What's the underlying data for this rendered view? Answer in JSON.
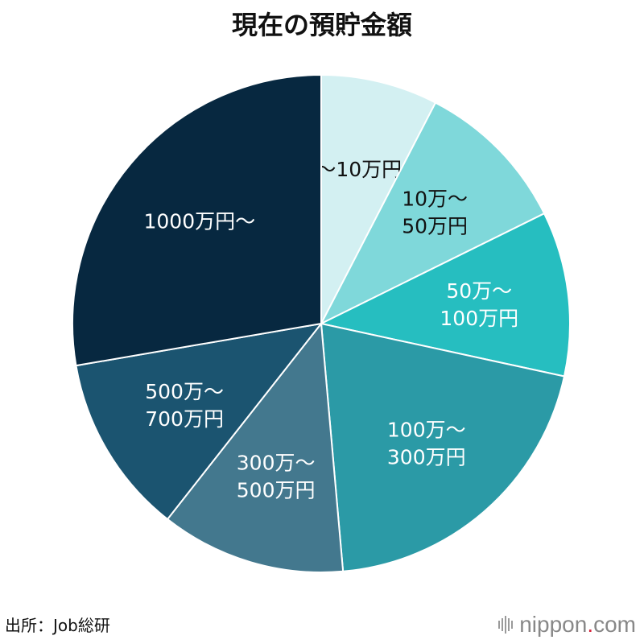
{
  "title": "現在の預貯金額",
  "source": "出所：Job総研",
  "logo": {
    "name": "nippon",
    "dot": ".",
    "tld": "com",
    "icon": "sound-wave-logo-icon"
  },
  "chart_data": {
    "type": "pie",
    "title": "現在の預貯金額",
    "slices": [
      {
        "label": "～10万円",
        "value": 7.6,
        "color": "#d3f0f2",
        "text_color": "#111111"
      },
      {
        "label": "10万～\n50万円",
        "value": 10.1,
        "color": "#7fd8da",
        "text_color": "#111111"
      },
      {
        "label": "50万～\n100万円",
        "value": 10.7,
        "color": "#26bec0",
        "text_color": "#ffffff"
      },
      {
        "label": "100万～\n300万円",
        "value": 20.2,
        "color": "#2b9aa6",
        "text_color": "#ffffff"
      },
      {
        "label": "300万～\n500万円",
        "value": 12.0,
        "color": "#43788e",
        "text_color": "#ffffff"
      },
      {
        "label": "500万～\n700万円",
        "value": 11.7,
        "color": "#1b5470",
        "text_color": "#ffffff"
      },
      {
        "label": "1000万円～",
        "value": 27.7,
        "color": "#072840",
        "text_color": "#ffffff"
      }
    ]
  }
}
